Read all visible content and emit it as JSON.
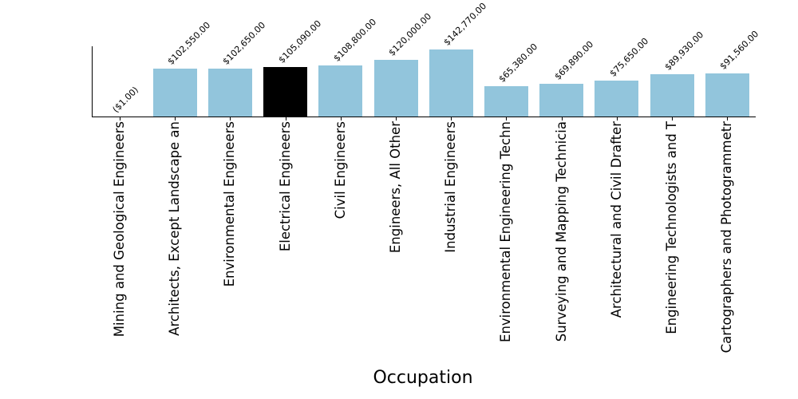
{
  "chart_data": {
    "type": "bar",
    "title": "",
    "xlabel": "Occupation",
    "ylabel": "",
    "ylim": [
      0,
      150000
    ],
    "grid": false,
    "legend": null,
    "highlight_color": "#000000",
    "bar_color": "#92c5dc",
    "categories": [
      "Mining and Geological Engineers",
      "Architects, Except Landscape an",
      "Environmental Engineers",
      "Electrical Engineers",
      "Civil Engineers",
      "Engineers, All Other",
      "Industrial Engineers",
      "Environmental Engineering Techn",
      "Surveying and Mapping Technicia",
      "Architectural and Civil Drafter",
      "Engineering Technologists and T",
      "Cartographers and Photogrammetr"
    ],
    "values": [
      -1,
      102550,
      102650,
      105090,
      108800,
      120000,
      142770,
      65380,
      69890,
      75650,
      89930,
      91560
    ],
    "value_labels": [
      "($1.00)",
      "$102,550.00",
      "$102,650.00",
      "$105,090.00",
      "$108,800.00",
      "$120,000.00",
      "$142,770.00",
      "$65,380.00",
      "$69,890.00",
      "$75,650.00",
      "$89,930.00",
      "$91,560.00"
    ],
    "highlighted_index": 3
  }
}
